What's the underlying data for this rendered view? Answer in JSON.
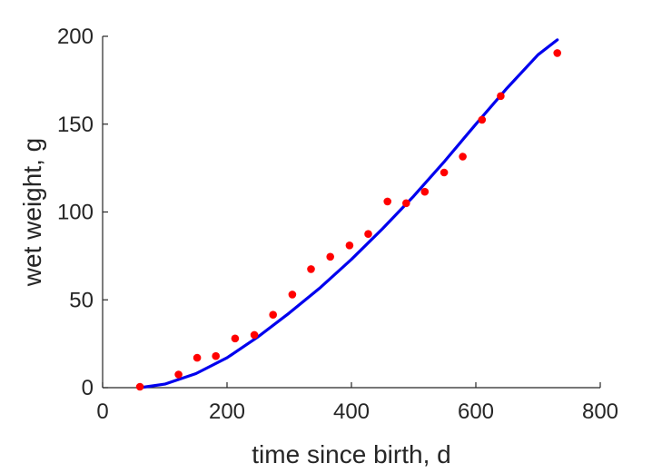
{
  "chart_data": {
    "type": "scatter",
    "title": "",
    "xlabel": "time since birth, d",
    "ylabel": "wet weight, g",
    "xlim": [
      0,
      800
    ],
    "ylim": [
      0,
      200
    ],
    "xticks": [
      0,
      200,
      400,
      600,
      800
    ],
    "yticks": [
      0,
      50,
      100,
      150,
      200
    ],
    "grid": false,
    "box": false,
    "series": [
      {
        "kind": "points",
        "color": "#ff0000",
        "x": [
          60,
          122,
          152,
          182,
          213,
          244,
          274,
          305,
          335,
          366,
          397,
          427,
          458,
          488,
          518,
          549,
          579,
          610,
          640,
          731
        ],
        "y": [
          0.5,
          7.5,
          17,
          18,
          28,
          30,
          41.5,
          53,
          67.5,
          74.5,
          81,
          87.5,
          106,
          105,
          111.5,
          122.5,
          131.5,
          152.5,
          166,
          190.5
        ]
      },
      {
        "kind": "line",
        "color": "#0000ee",
        "x": [
          60,
          100,
          150,
          200,
          250,
          300,
          350,
          400,
          450,
          500,
          550,
          600,
          650,
          700,
          731
        ],
        "y": [
          0,
          2,
          8,
          17,
          29,
          42.5,
          57,
          73,
          90.5,
          109,
          129,
          150,
          170.5,
          189.5,
          198
        ]
      }
    ]
  }
}
